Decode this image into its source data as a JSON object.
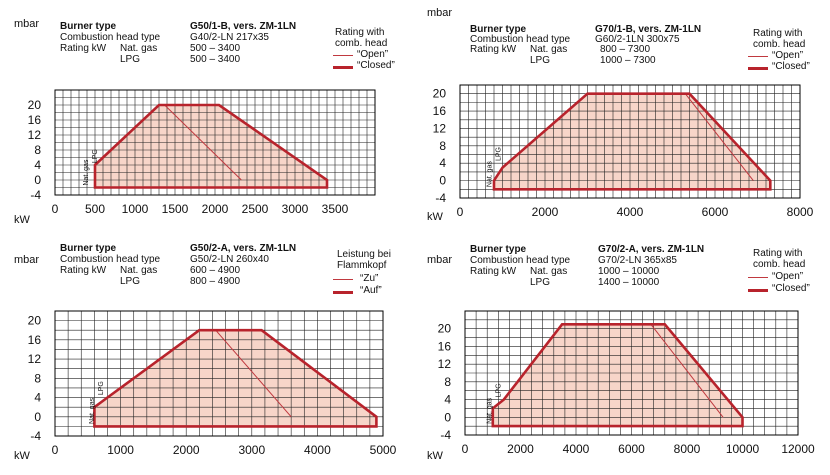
{
  "chart_data": [
    {
      "type": "area",
      "header": {
        "burner_type_label": "Burner type",
        "burner_type_value": "G50/1-B, vers. ZM-1LN",
        "head_type_label": "Combustion head type",
        "head_type_value": "G40/2-LN 217x35",
        "rating_label": "Rating kW",
        "fuel1_label": "Nat. gas",
        "fuel1_range": "500 – 3400",
        "fuel2_label": "LPG",
        "fuel2_range": "500 – 3400",
        "legend_title_1": "Rating with",
        "legend_title_2": "comb. head",
        "legend_thin": "“Open”",
        "legend_thick": "“Closed”"
      },
      "ylabel": "mbar",
      "xlabel": "kW",
      "xlim": [
        0,
        4000
      ],
      "ylim": [
        -4,
        24
      ],
      "xticks": [
        0,
        500,
        1000,
        1500,
        2000,
        2500,
        3000,
        3500
      ],
      "yticks": [
        -4,
        0,
        4,
        8,
        12,
        16,
        20
      ],
      "xgrid_step": 100,
      "ygrid_step": 2,
      "closed_envelope": [
        [
          500,
          -2
        ],
        [
          500,
          4
        ],
        [
          1300,
          20
        ],
        [
          2050,
          20
        ],
        [
          3400,
          0
        ],
        [
          3400,
          -2
        ]
      ],
      "open_curve": [
        [
          1370,
          20
        ],
        [
          2330,
          0
        ]
      ],
      "fuel_labels": {
        "primary": "Nat. gas",
        "secondary": "LPG",
        "at_x": 500
      }
    },
    {
      "type": "area",
      "header": {
        "burner_type_label": "Burner type",
        "burner_type_value": "G70/1-B, vers. ZM-1LN",
        "head_type_label": "Combustion head type",
        "head_type_value": "G60/2-1LN 300x75",
        "rating_label": "Rating kW",
        "fuel1_label": "Nat. gas",
        "fuel1_range": "800 – 7300",
        "fuel2_label": "LPG",
        "fuel2_range": "1000 – 7300",
        "legend_title_1": "Rating with",
        "legend_title_2": "comb. head",
        "legend_thin": "“Open”",
        "legend_thick": "“Closed”"
      },
      "ylabel": "mbar",
      "xlabel": "kW",
      "xlim": [
        0,
        8000
      ],
      "ylim": [
        -4,
        22
      ],
      "xticks": [
        0,
        2000,
        4000,
        6000,
        8000
      ],
      "yticks": [
        -4,
        0,
        4,
        8,
        12,
        16,
        20
      ],
      "xgrid_step": 200,
      "ygrid_step": 2,
      "closed_envelope": [
        [
          800,
          -2
        ],
        [
          800,
          0
        ],
        [
          1000,
          3
        ],
        [
          3000,
          20
        ],
        [
          5400,
          20
        ],
        [
          7300,
          0
        ],
        [
          7300,
          -2
        ]
      ],
      "open_curve": [
        [
          5300,
          20
        ],
        [
          6900,
          0
        ]
      ],
      "fuel_labels": {
        "primary": "Nat. gas",
        "secondary": "LPG",
        "at_x": 900
      }
    },
    {
      "type": "area",
      "header": {
        "burner_type_label": "Burner type",
        "burner_type_value": "G50/2-A, vers. ZM-1LN",
        "head_type_label": "Combustion head type",
        "head_type_value": "G50/2-LN 260x40",
        "rating_label": "Rating kW",
        "fuel1_label": "Nat. gas",
        "fuel1_range": "600 – 4900",
        "fuel2_label": "LPG",
        "fuel2_range": "800 – 4900",
        "legend_title_1": "Leistung bei",
        "legend_title_2": "Flammkopf",
        "legend_thin": "“Zu”",
        "legend_thick": "“Auf”"
      },
      "ylabel": "mbar",
      "xlabel": "kW",
      "xlim": [
        0,
        5000
      ],
      "ylim": [
        -4,
        22
      ],
      "xticks": [
        0,
        1000,
        2000,
        3000,
        4000,
        5000
      ],
      "yticks": [
        -4,
        0,
        4,
        8,
        12,
        16,
        20
      ],
      "xgrid_step": 200,
      "ygrid_step": 2,
      "closed_envelope": [
        [
          600,
          -2
        ],
        [
          600,
          2
        ],
        [
          800,
          4
        ],
        [
          2200,
          18
        ],
        [
          3150,
          18
        ],
        [
          4900,
          0
        ],
        [
          4900,
          -2
        ]
      ],
      "open_curve": [
        [
          2450,
          18
        ],
        [
          3600,
          0
        ]
      ],
      "fuel_labels": {
        "primary": "Nat. gas",
        "secondary": "LPG",
        "at_x": 700
      }
    },
    {
      "type": "area",
      "header": {
        "burner_type_label": "Burner type",
        "burner_type_value": "G70/2-A, vers. ZM-1LN",
        "head_type_label": "Combustion head type",
        "head_type_value": "G70/2-LN 365x85",
        "rating_label": "Rating kW",
        "fuel1_label": "Nat. gas",
        "fuel1_range": "1000 – 10000",
        "fuel2_label": "LPG",
        "fuel2_range": "1400 – 10000",
        "legend_title_1": "Rating with",
        "legend_title_2": "comb. head",
        "legend_thin": "“Open”",
        "legend_thick": "“Closed”"
      },
      "ylabel": "mbar",
      "xlabel": "kW",
      "xlim": [
        0,
        12000
      ],
      "ylim": [
        -4,
        24
      ],
      "xticks": [
        0,
        2000,
        4000,
        6000,
        8000,
        10000,
        12000
      ],
      "yticks": [
        -4,
        0,
        4,
        8,
        12,
        16,
        20
      ],
      "xgrid_step": 400,
      "ygrid_step": 2,
      "closed_envelope": [
        [
          1000,
          -2
        ],
        [
          1000,
          2
        ],
        [
          1400,
          4
        ],
        [
          3500,
          21
        ],
        [
          7200,
          21
        ],
        [
          10000,
          0
        ],
        [
          10000,
          -2
        ]
      ],
      "open_curve": [
        [
          6700,
          21
        ],
        [
          9300,
          0
        ]
      ],
      "fuel_labels": {
        "primary": "Nat. gas",
        "secondary": "LPG",
        "at_x": 1200
      }
    }
  ],
  "style": {
    "closed_color": "#b8232c",
    "open_color": "#c0393f",
    "fill_color": "#f7d5c9",
    "grid_color": "#222222"
  }
}
